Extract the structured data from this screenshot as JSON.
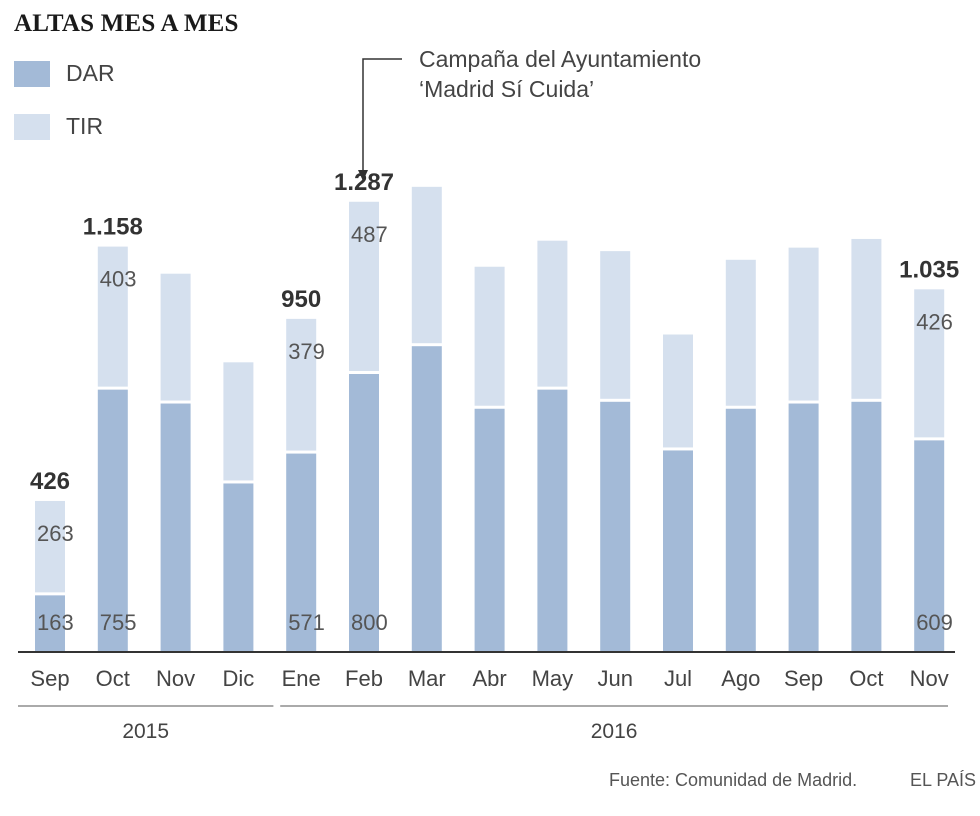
{
  "title": "ALTAS MES A MES",
  "legend": [
    {
      "label": "DAR",
      "color": "#a3bad7"
    },
    {
      "label": "TIR",
      "color": "#d5e0ee"
    }
  ],
  "annotation": {
    "line1": "Campaña del Ayuntamiento",
    "line2": "‘Madrid Sí Cuida’"
  },
  "source": "Fuente: Comunidad de Madrid.",
  "brand": "EL PAÍS",
  "colors": {
    "dar": "#a3bad7",
    "tir": "#d5e0ee",
    "axis": "#333333"
  },
  "chart_data": {
    "type": "bar",
    "stacked": true,
    "title": "ALTAS MES A MES",
    "categories": [
      "Sep",
      "Oct",
      "Nov",
      "Dic",
      "Ene",
      "Feb",
      "Mar",
      "Abr",
      "May",
      "Jun",
      "Jul",
      "Ago",
      "Sep",
      "Oct",
      "Nov"
    ],
    "years": [
      {
        "label": "2015",
        "from": 0,
        "to": 3
      },
      {
        "label": "2016",
        "from": 4,
        "to": 14
      }
    ],
    "series": [
      {
        "name": "DAR",
        "values": [
          163,
          755,
          715,
          485,
          571,
          800,
          880,
          700,
          755,
          720,
          580,
          700,
          715,
          720,
          609
        ]
      },
      {
        "name": "TIR",
        "values": [
          263,
          403,
          365,
          340,
          379,
          487,
          450,
          400,
          420,
          425,
          325,
          420,
          440,
          460,
          426
        ]
      }
    ],
    "value_labels": {
      "DAR": {
        "0": "163",
        "1": "755",
        "4": "571",
        "5": "800",
        "14": "609"
      },
      "TIR": {
        "0": "263",
        "1": "403",
        "4": "379",
        "5": "487",
        "14": "426"
      },
      "total": {
        "0": "426",
        "1": "1.158",
        "4": "950",
        "5": "1.287",
        "14": "1.035"
      }
    },
    "ylim": [
      0,
      1400
    ],
    "xlabel": "",
    "ylabel": "",
    "grid": false,
    "legend_position": "top-left",
    "annotation_index": 5
  }
}
